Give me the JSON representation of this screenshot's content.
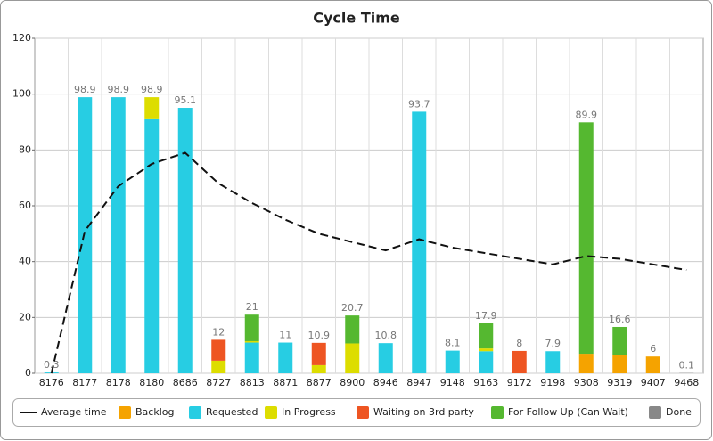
{
  "chart_data": {
    "type": "stacked-bar-line",
    "title": "Cycle Time",
    "categories": [
      "8176",
      "8177",
      "8178",
      "8180",
      "8686",
      "8727",
      "8813",
      "8871",
      "8877",
      "8900",
      "8946",
      "8947",
      "9148",
      "9163",
      "9172",
      "9198",
      "9308",
      "9319",
      "9407",
      "9468"
    ],
    "series": [
      {
        "name": "Backlog",
        "color": "#f5a300",
        "values": [
          null,
          null,
          null,
          null,
          null,
          null,
          null,
          null,
          null,
          null,
          null,
          null,
          null,
          null,
          null,
          null,
          7,
          6.6,
          6,
          null
        ]
      },
      {
        "name": "Requested",
        "color": "#27cde3",
        "values": [
          0.3,
          98.9,
          98.9,
          91,
          95.1,
          null,
          11,
          11,
          null,
          null,
          10.8,
          93.7,
          8.1,
          7.9,
          null,
          7.9,
          null,
          null,
          null,
          null
        ]
      },
      {
        "name": "In Progress",
        "color": "#dddd00",
        "values": [
          null,
          null,
          null,
          7.9,
          null,
          4.5,
          0.5,
          null,
          2.9,
          10.7,
          null,
          null,
          null,
          1,
          null,
          null,
          null,
          null,
          null,
          null
        ]
      },
      {
        "name": "Waiting on 3rd party",
        "color": "#ee5522",
        "values": [
          null,
          null,
          null,
          null,
          null,
          7.5,
          null,
          null,
          8,
          null,
          null,
          null,
          null,
          null,
          8,
          null,
          null,
          null,
          null,
          null
        ]
      },
      {
        "name": "For Follow Up (Can Wait)",
        "color": "#55b830",
        "values": [
          null,
          null,
          null,
          null,
          null,
          null,
          9.5,
          null,
          null,
          10,
          null,
          null,
          null,
          9,
          null,
          null,
          82.9,
          10,
          null,
          null
        ]
      },
      {
        "name": "Done",
        "color": "#888888",
        "values": [
          null,
          null,
          null,
          null,
          null,
          null,
          null,
          null,
          null,
          null,
          null,
          null,
          null,
          null,
          null,
          null,
          null,
          null,
          null,
          0.1
        ]
      }
    ],
    "totals": [
      0.3,
      98.9,
      98.9,
      98.9,
      95.1,
      12,
      21,
      11,
      10.9,
      20.7,
      10.8,
      93.7,
      8.1,
      17.9,
      8,
      7.9,
      89.9,
      16.6,
      6,
      0.1
    ],
    "line_series": {
      "name": "Average time",
      "color": "#111111",
      "values": [
        0,
        51,
        67,
        75,
        79,
        68,
        61,
        55,
        50,
        47,
        44,
        48,
        45,
        43,
        41,
        39,
        42,
        41,
        39,
        37
      ]
    },
    "ylim": [
      0,
      120
    ],
    "yticks": [
      0,
      20,
      40,
      60,
      80,
      100,
      120
    ],
    "grid": true,
    "legend": "bottom"
  }
}
